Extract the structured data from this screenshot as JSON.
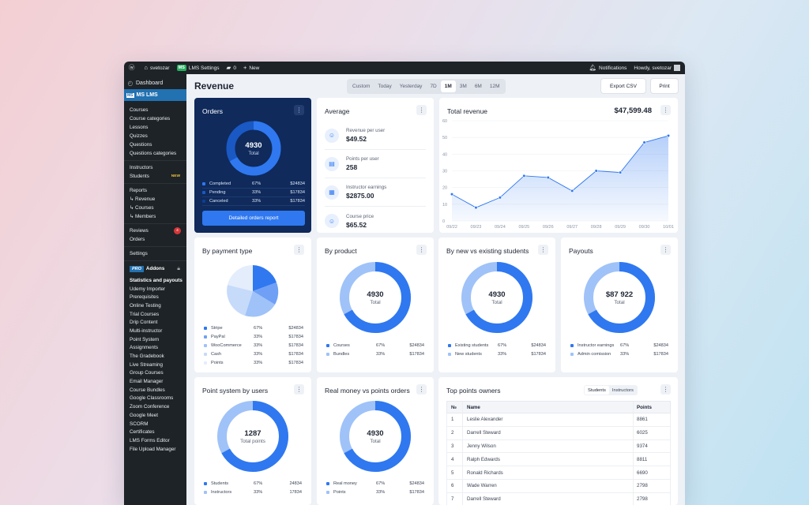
{
  "admin_bar": {
    "site_name": "svetozar",
    "lms_badge": "MS",
    "lms_settings": "LMS Settings",
    "comments": "0",
    "new": "New",
    "notifications": "Notifications",
    "howdy": "Howdy, svetozar"
  },
  "sidebar": {
    "dashboard": "Dashboard",
    "lms_mark": "MS",
    "lms": "MS LMS",
    "group1": [
      "Courses",
      "Course categories",
      "Lessons",
      "Quizzes",
      "Questions",
      "Questions categories"
    ],
    "instructors": "Instructors",
    "students": "Students",
    "new_badge": "NEW",
    "reports": "Reports",
    "reports_sub": [
      "↳ Revenue",
      "↳ Courses",
      "↳ Members"
    ],
    "reviews": "Reviews",
    "reviews_badge": "4",
    "orders": "Orders",
    "settings": "Settings",
    "pro": "PRO",
    "addons": "Addons",
    "addons_list": [
      "Statistics and payouts",
      "Udemy Importer",
      "Prerequisites",
      "Online Testing",
      "Trial Courses",
      "Drip Content",
      "Multi-instructor",
      "Point System",
      "Assignments",
      "The Gradebook",
      "Live Streaming",
      "Group Courses",
      "Email Manager",
      "Course Bundles",
      "Google Classrooms",
      "Zoom Conference",
      "Google Meet",
      "SCORM",
      "Certificates",
      "LMS Forms Editor",
      "File Upload Manager"
    ]
  },
  "header": {
    "title": "Revenue",
    "ranges": [
      "Custom",
      "Today",
      "Yesterday",
      "7D",
      "1M",
      "3M",
      "6M",
      "12M"
    ],
    "active_range": "1M",
    "export": "Export CSV",
    "print": "Print"
  },
  "orders": {
    "title": "Orders",
    "total": "4930",
    "total_label": "Total",
    "legend": [
      {
        "name": "Completed",
        "pct": "67%",
        "val": "$24834",
        "color": "#2f78f0"
      },
      {
        "name": "Pending",
        "pct": "33%",
        "val": "$17834",
        "color": "#1a58c4"
      },
      {
        "name": "Canceled",
        "pct": "33%",
        "val": "$17834",
        "color": "#103e8f"
      }
    ],
    "report_button": "Detailed orders report"
  },
  "average": {
    "title": "Average",
    "rows": [
      {
        "label": "Revenue per user",
        "value": "$49.52",
        "icon": "user-icon"
      },
      {
        "label": "Points per user",
        "value": "258",
        "icon": "coins-icon"
      },
      {
        "label": "Instructor earnings",
        "value": "$2875.00",
        "icon": "document-icon"
      },
      {
        "label": "Course price",
        "value": "$65.52",
        "icon": "user-icon"
      }
    ]
  },
  "total_revenue": {
    "title": "Total revenue",
    "amount": "$47,599.48"
  },
  "chart_data": {
    "type": "area",
    "x": [
      "09/22",
      "09/23",
      "09/24",
      "09/25",
      "09/26",
      "09/27",
      "09/28",
      "09/29",
      "09/30",
      "10/01"
    ],
    "values": [
      16,
      8,
      14,
      27,
      26,
      18,
      30,
      29,
      47,
      51
    ],
    "yticks": [
      0,
      10,
      20,
      30,
      40,
      50,
      60
    ],
    "ylim": [
      0,
      60
    ],
    "color": "#2f78f0"
  },
  "payment_type": {
    "title": "By payment type",
    "legend": [
      {
        "name": "Stripe",
        "pct": "67%",
        "val": "$24834",
        "color": "#2f78f0"
      },
      {
        "name": "PayPal",
        "pct": "33%",
        "val": "$17834",
        "color": "#6fa0f5"
      },
      {
        "name": "WooCommerce",
        "pct": "33%",
        "val": "$17834",
        "color": "#9fc2f8"
      },
      {
        "name": "Cash",
        "pct": "33%",
        "val": "$17834",
        "color": "#c6dafa"
      },
      {
        "name": "Points",
        "pct": "33%",
        "val": "$17834",
        "color": "#e4edfc"
      }
    ]
  },
  "by_product": {
    "title": "By product",
    "total": "4930",
    "total_label": "Total",
    "legend": [
      {
        "name": "Courses",
        "pct": "67%",
        "val": "$24834",
        "color": "#2f78f0"
      },
      {
        "name": "Bundles",
        "pct": "33%",
        "val": "$17834",
        "color": "#9fc2f8"
      }
    ]
  },
  "new_vs_existing": {
    "title": "By new vs existing students",
    "total": "4930",
    "total_label": "Total",
    "legend": [
      {
        "name": "Existing students",
        "pct": "67%",
        "val": "$24834",
        "color": "#2f78f0"
      },
      {
        "name": "New students",
        "pct": "33%",
        "val": "$17834",
        "color": "#9fc2f8"
      }
    ]
  },
  "payouts": {
    "title": "Payouts",
    "total": "$87 922",
    "total_label": "Total",
    "legend": [
      {
        "name": "Instructor earnings",
        "pct": "67%",
        "val": "$24834",
        "color": "#2f78f0"
      },
      {
        "name": "Admin comission",
        "pct": "33%",
        "val": "$17834",
        "color": "#9fc2f8"
      }
    ]
  },
  "point_system": {
    "title": "Point system by users",
    "total": "1287",
    "total_label": "Total points",
    "legend": [
      {
        "name": "Students",
        "pct": "67%",
        "val": "24834",
        "color": "#2f78f0"
      },
      {
        "name": "Instructors",
        "pct": "33%",
        "val": "17834",
        "color": "#9fc2f8"
      }
    ]
  },
  "real_vs_points": {
    "title": "Real money vs points orders",
    "total": "4930",
    "total_label": "Total",
    "legend": [
      {
        "name": "Real money",
        "pct": "67%",
        "val": "$24834",
        "color": "#2f78f0"
      },
      {
        "name": "Points",
        "pct": "33%",
        "val": "$17834",
        "color": "#9fc2f8"
      }
    ]
  },
  "top_points": {
    "title": "Top points owners",
    "tabs": [
      "Students",
      "Instructors"
    ],
    "headers": [
      "№",
      "Name",
      "Points"
    ],
    "rows": [
      {
        "n": "1",
        "name": "Leslie Alexander",
        "points": "8861"
      },
      {
        "n": "2",
        "name": "Darrell Steward",
        "points": "6025"
      },
      {
        "n": "3",
        "name": "Jenny Wilson",
        "points": "9374"
      },
      {
        "n": "4",
        "name": "Ralph Edwards",
        "points": "8811"
      },
      {
        "n": "5",
        "name": "Ronald Richards",
        "points": "6690"
      },
      {
        "n": "6",
        "name": "Wade Warren",
        "points": "2798"
      },
      {
        "n": "7",
        "name": "Darrell Steward",
        "points": "2798"
      }
    ]
  }
}
